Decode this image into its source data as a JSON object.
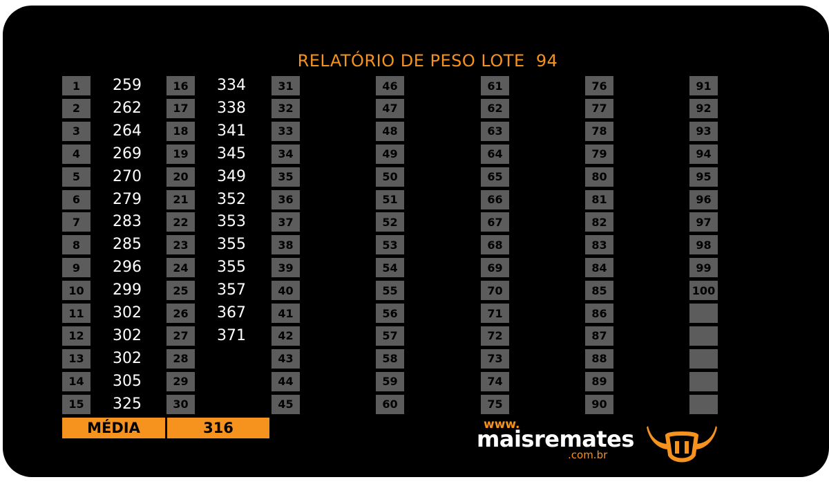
{
  "report": {
    "title": "RELATÓRIO DE PESO LOTE  94",
    "columns": [
      {
        "numbers": [
          "1",
          "2",
          "3",
          "4",
          "5",
          "6",
          "7",
          "8",
          "9",
          "10",
          "11",
          "12",
          "13",
          "14",
          "15"
        ],
        "weights": [
          "259",
          "262",
          "264",
          "269",
          "270",
          "279",
          "283",
          "285",
          "296",
          "299",
          "302",
          "302",
          "302",
          "305",
          "325"
        ]
      },
      {
        "numbers": [
          "16",
          "17",
          "18",
          "19",
          "20",
          "21",
          "22",
          "23",
          "24",
          "25",
          "26",
          "27",
          "28",
          "29",
          "30"
        ],
        "weights": [
          "334",
          "338",
          "341",
          "345",
          "349",
          "352",
          "353",
          "355",
          "355",
          "357",
          "367",
          "371",
          "",
          "",
          ""
        ]
      },
      {
        "numbers": [
          "31",
          "32",
          "33",
          "34",
          "35",
          "36",
          "37",
          "38",
          "39",
          "40",
          "41",
          "42",
          "43",
          "44",
          "45"
        ],
        "weights": [
          "",
          "",
          "",
          "",
          "",
          "",
          "",
          "",
          "",
          "",
          "",
          "",
          "",
          "",
          ""
        ]
      },
      {
        "numbers": [
          "46",
          "47",
          "48",
          "49",
          "50",
          "51",
          "52",
          "53",
          "54",
          "55",
          "56",
          "57",
          "58",
          "59",
          "60"
        ],
        "weights": [
          "",
          "",
          "",
          "",
          "",
          "",
          "",
          "",
          "",
          "",
          "",
          "",
          "",
          "",
          ""
        ]
      },
      {
        "numbers": [
          "61",
          "62",
          "63",
          "64",
          "65",
          "66",
          "67",
          "68",
          "69",
          "70",
          "71",
          "72",
          "73",
          "74",
          "75"
        ],
        "weights": [
          "",
          "",
          "",
          "",
          "",
          "",
          "",
          "",
          "",
          "",
          "",
          "",
          "",
          "",
          ""
        ]
      },
      {
        "numbers": [
          "76",
          "77",
          "78",
          "79",
          "80",
          "81",
          "82",
          "83",
          "84",
          "85",
          "86",
          "87",
          "88",
          "89",
          "90"
        ],
        "weights": [
          "",
          "",
          "",
          "",
          "",
          "",
          "",
          "",
          "",
          "",
          "",
          "",
          "",
          "",
          ""
        ]
      },
      {
        "numbers": [
          "91",
          "92",
          "93",
          "94",
          "95",
          "96",
          "97",
          "98",
          "99",
          "100",
          "",
          "",
          "",
          "",
          ""
        ],
        "weights": [
          "",
          "",
          "",
          "",
          "",
          "",
          "",
          "",
          "",
          "",
          "",
          "",
          "",
          "",
          ""
        ]
      }
    ],
    "average": {
      "label": "MÉDIA",
      "value": "316"
    }
  },
  "logo": {
    "www": "www.",
    "name": "maisremates",
    "domain": ".com.br",
    "icon": "bull-horns-icon"
  },
  "colors": {
    "background": "#000000",
    "accent": "#f6921e",
    "cell": "#5c5c5c",
    "text": "#ffffff"
  }
}
